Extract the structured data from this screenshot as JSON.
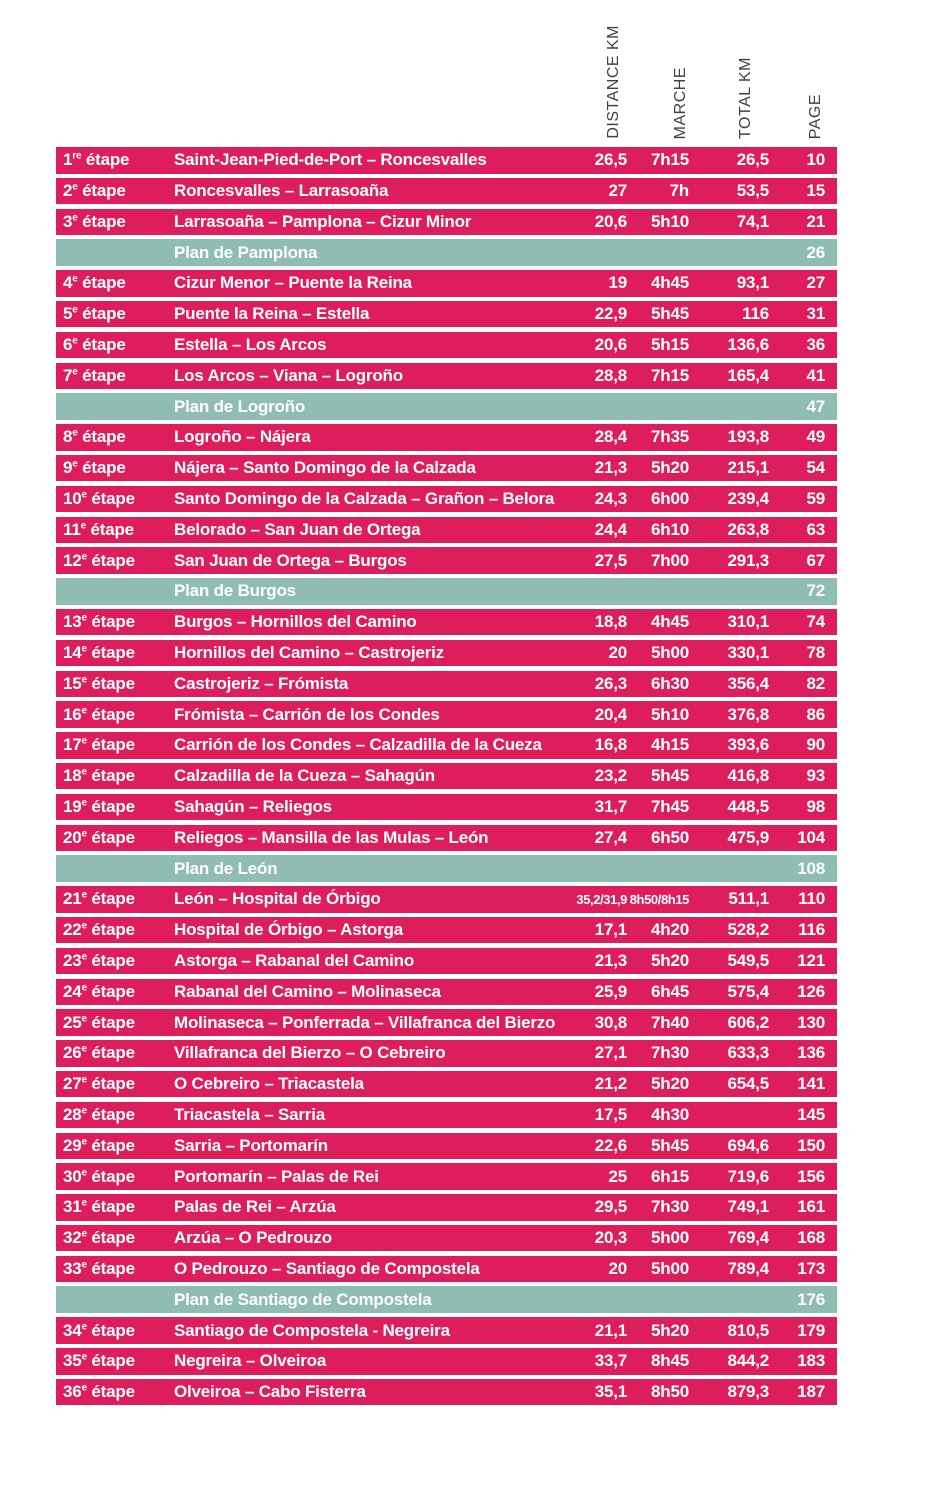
{
  "colors": {
    "stage_row_bg": "#de1d5c",
    "plan_row_bg": "#8fbcb3",
    "row_text": "#ffffff",
    "header_text": "#414141"
  },
  "header": {
    "columns": [
      "DISTANCE KM",
      "MARCHE",
      "TOTAL KM",
      "PAGE"
    ]
  },
  "table": {
    "rows": [
      {
        "type": "stage",
        "num": "1",
        "sup": "re",
        "label": "étape",
        "route": "Saint-Jean-Pied-de-Port – Roncesvalles",
        "distance": "26,5",
        "marche": "7h15",
        "total": "26,5",
        "page": "10"
      },
      {
        "type": "stage",
        "num": "2",
        "sup": "e",
        "label": "étape",
        "route": "Roncesvalles – Larrasoaña",
        "distance": "27",
        "marche": "7h",
        "total": "53,5",
        "page": "15"
      },
      {
        "type": "stage",
        "num": "3",
        "sup": "e",
        "label": "étape",
        "route": "Larrasoaña – Pamplona – Cizur Minor",
        "distance": "20,6",
        "marche": "5h10",
        "total": "74,1",
        "page": "21"
      },
      {
        "type": "plan",
        "route": "Plan de Pamplona",
        "page": "26"
      },
      {
        "type": "stage",
        "num": "4",
        "sup": "e",
        "label": "étape",
        "route": "Cizur Menor – Puente la Reina",
        "distance": "19",
        "marche": "4h45",
        "total": "93,1",
        "page": "27"
      },
      {
        "type": "stage",
        "num": "5",
        "sup": "e",
        "label": "étape",
        "route": "Puente la Reina – Estella",
        "distance": "22,9",
        "marche": "5h45",
        "total": "116",
        "page": "31"
      },
      {
        "type": "stage",
        "num": "6",
        "sup": "e",
        "label": "étape",
        "route": "Estella – Los Arcos",
        "distance": "20,6",
        "marche": "5h15",
        "total": "136,6",
        "page": "36"
      },
      {
        "type": "stage",
        "num": "7",
        "sup": "e",
        "label": "étape",
        "route": "Los Arcos – Viana – Logroño",
        "distance": "28,8",
        "marche": "7h15",
        "total": "165,4",
        "page": "41"
      },
      {
        "type": "plan",
        "route": "Plan de Logroño",
        "page": "47"
      },
      {
        "type": "stage",
        "num": "8",
        "sup": "e",
        "label": "étape",
        "route": "Logroño – Nájera",
        "distance": "28,4",
        "marche": "7h35",
        "total": "193,8",
        "page": "49"
      },
      {
        "type": "stage",
        "num": "9",
        "sup": "e",
        "label": "étape",
        "route": "Nájera – Santo Domingo de la Calzada",
        "distance": "21,3",
        "marche": "5h20",
        "total": "215,1",
        "page": "54"
      },
      {
        "type": "stage",
        "num": "10",
        "sup": "e",
        "label": "étape",
        "route": "Santo Domingo de la Calzada – Grañon – Belorado",
        "distance": "24,3",
        "marche": "6h00",
        "total": "239,4",
        "page": "59"
      },
      {
        "type": "stage",
        "num": "11",
        "sup": "e",
        "label": "étape",
        "route": "Belorado – San Juan de Ortega",
        "distance": "24,4",
        "marche": "6h10",
        "total": "263,8",
        "page": "63"
      },
      {
        "type": "stage",
        "num": "12",
        "sup": "e",
        "label": "étape",
        "route": "San Juan de Ortega – Burgos",
        "distance": "27,5",
        "marche": "7h00",
        "total": "291,3",
        "page": "67"
      },
      {
        "type": "plan",
        "route": "Plan de Burgos",
        "page": "72"
      },
      {
        "type": "stage",
        "num": "13",
        "sup": "e",
        "label": "étape",
        "route": "Burgos – Hornillos del Camino",
        "distance": "18,8",
        "marche": "4h45",
        "total": "310,1",
        "page": "74"
      },
      {
        "type": "stage",
        "num": "14",
        "sup": "e",
        "label": "étape",
        "route": "Hornillos del Camino – Castrojeriz",
        "distance": "20",
        "marche": "5h00",
        "total": "330,1",
        "page": "78"
      },
      {
        "type": "stage",
        "num": "15",
        "sup": "e",
        "label": "étape",
        "route": "Castrojeriz – Frómista",
        "distance": "26,3",
        "marche": "6h30",
        "total": "356,4",
        "page": "82"
      },
      {
        "type": "stage",
        "num": "16",
        "sup": "e",
        "label": "étape",
        "route": "Frómista – Carrión de los Condes",
        "distance": "20,4",
        "marche": "5h10",
        "total": "376,8",
        "page": "86"
      },
      {
        "type": "stage",
        "num": "17",
        "sup": "e",
        "label": "étape",
        "route": "Carrión de los Condes – Calzadilla de la Cueza",
        "distance": "16,8",
        "marche": "4h15",
        "total": "393,6",
        "page": "90"
      },
      {
        "type": "stage",
        "num": "18",
        "sup": "e",
        "label": "étape",
        "route": "Calzadilla de la Cueza – Sahagún",
        "distance": "23,2",
        "marche": "5h45",
        "total": "416,8",
        "page": "93"
      },
      {
        "type": "stage",
        "num": "19",
        "sup": "e",
        "label": "étape",
        "route": "Sahagún – Reliegos",
        "distance": "31,7",
        "marche": "7h45",
        "total": "448,5",
        "page": "98"
      },
      {
        "type": "stage",
        "num": "20",
        "sup": "e",
        "label": "étape",
        "route": "Reliegos – Mansilla de las Mulas – León",
        "distance": "27,4",
        "marche": "6h50",
        "total": "475,9",
        "page": "104"
      },
      {
        "type": "plan",
        "route": "Plan de León",
        "page": "108"
      },
      {
        "type": "stage",
        "num": "21",
        "sup": "e",
        "label": "étape",
        "route": "León – Hospital de Órbigo",
        "distance": "35,2/31,9",
        "marche": "8h50/8h15",
        "total": "511,1",
        "page": "110",
        "small": true
      },
      {
        "type": "stage",
        "num": "22",
        "sup": "e",
        "label": "étape",
        "route": "Hospital de Órbigo – Astorga",
        "distance": "17,1",
        "marche": "4h20",
        "total": "528,2",
        "page": "116"
      },
      {
        "type": "stage",
        "num": "23",
        "sup": "e",
        "label": "étape",
        "route": "Astorga – Rabanal del Camino",
        "distance": "21,3",
        "marche": "5h20",
        "total": "549,5",
        "page": "121"
      },
      {
        "type": "stage",
        "num": "24",
        "sup": "e",
        "label": "étape",
        "route": "Rabanal del Camino – Molinaseca",
        "distance": "25,9",
        "marche": "6h45",
        "total": "575,4",
        "page": "126"
      },
      {
        "type": "stage",
        "num": "25",
        "sup": "e",
        "label": "étape",
        "route": "Molinaseca – Ponferrada – Villafranca del Bierzo",
        "distance": "30,8",
        "marche": "7h40",
        "total": "606,2",
        "page": "130"
      },
      {
        "type": "stage",
        "num": "26",
        "sup": "e",
        "label": "étape",
        "route": "Villafranca del Bierzo – O Cebreiro",
        "distance": "27,1",
        "marche": "7h30",
        "total": "633,3",
        "page": "136"
      },
      {
        "type": "stage",
        "num": "27",
        "sup": "e",
        "label": "étape",
        "route": "O Cebreiro – Triacastela",
        "distance": "21,2",
        "marche": "5h20",
        "total": "654,5",
        "page": "141"
      },
      {
        "type": "stage",
        "num": "28",
        "sup": "e",
        "label": "étape",
        "route": "Triacastela – Sarria",
        "distance": "17,5",
        "marche": "4h30",
        "total": "",
        "page": "145"
      },
      {
        "type": "stage",
        "num": "29",
        "sup": "e",
        "label": "étape",
        "route": "Sarria – Portomarín",
        "distance": "22,6",
        "marche": "5h45",
        "total": "694,6",
        "page": "150"
      },
      {
        "type": "stage",
        "num": "30",
        "sup": "e",
        "label": "étape",
        "route": "Portomarín – Palas de Rei",
        "distance": "25",
        "marche": "6h15",
        "total": "719,6",
        "page": "156"
      },
      {
        "type": "stage",
        "num": "31",
        "sup": "e",
        "label": "étape",
        "route": "Palas de Rei – Arzúa",
        "distance": "29,5",
        "marche": "7h30",
        "total": "749,1",
        "page": "161"
      },
      {
        "type": "stage",
        "num": "32",
        "sup": "e",
        "label": "étape",
        "route": "Arzúa – O Pedrouzo",
        "distance": "20,3",
        "marche": "5h00",
        "total": "769,4",
        "page": "168"
      },
      {
        "type": "stage",
        "num": "33",
        "sup": "e",
        "label": "étape",
        "route": "O Pedrouzo – Santiago de Compostela",
        "distance": "20",
        "marche": "5h00",
        "total": "789,4",
        "page": "173"
      },
      {
        "type": "plan",
        "route": "Plan de Santiago de Compostela",
        "page": "176"
      },
      {
        "type": "stage",
        "num": "34",
        "sup": "e",
        "label": "étape",
        "route": "Santiago de Compostela - Negreira",
        "distance": "21,1",
        "marche": "5h20",
        "total": "810,5",
        "page": "179"
      },
      {
        "type": "stage",
        "num": "35",
        "sup": "e",
        "label": "étape",
        "route": "Negreira – Olveiroa",
        "distance": "33,7",
        "marche": "8h45",
        "total": "844,2",
        "page": "183"
      },
      {
        "type": "stage",
        "num": "36",
        "sup": "e",
        "label": "étape",
        "route": "Olveiroa – Cabo Fisterra",
        "distance": "35,1",
        "marche": "8h50",
        "total": "879,3",
        "page": "187"
      }
    ]
  }
}
